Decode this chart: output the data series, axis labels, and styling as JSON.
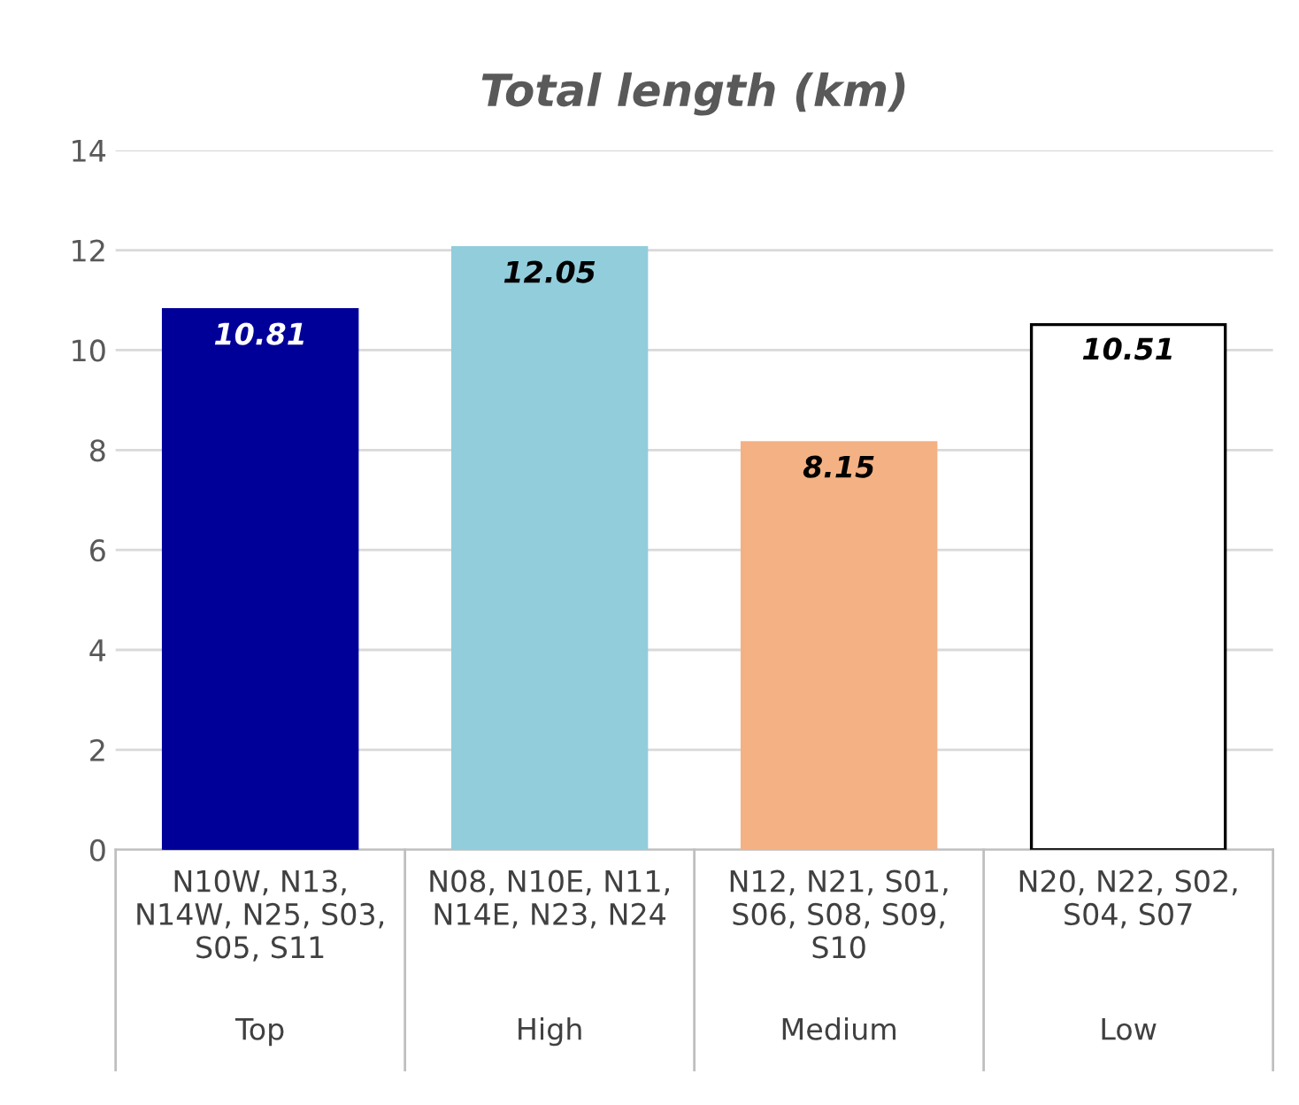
{
  "chart_data": {
    "type": "bar",
    "title": "Total length (km)",
    "categories": [
      "N10W, N13,\nN14W, N25, S03,\nS05, S11",
      "N08, N10E, N11,\nN14E, N23, N24",
      "N12, N21, S01,\nS06, S08, S09,\nS10",
      "N20, N22, S02,\nS04, S07"
    ],
    "annotations": [
      "Top",
      "High",
      "Medium",
      "Low"
    ],
    "values": [
      10.81,
      12.05,
      8.15,
      10.51
    ],
    "colors": [
      "#000099",
      "#92cddc",
      "#f4b183",
      "#ffffff"
    ],
    "ylim": [
      0,
      14
    ],
    "yticks": [
      0,
      2,
      4,
      6,
      8,
      10,
      12,
      14
    ],
    "grid": "y",
    "data_labels": true
  }
}
